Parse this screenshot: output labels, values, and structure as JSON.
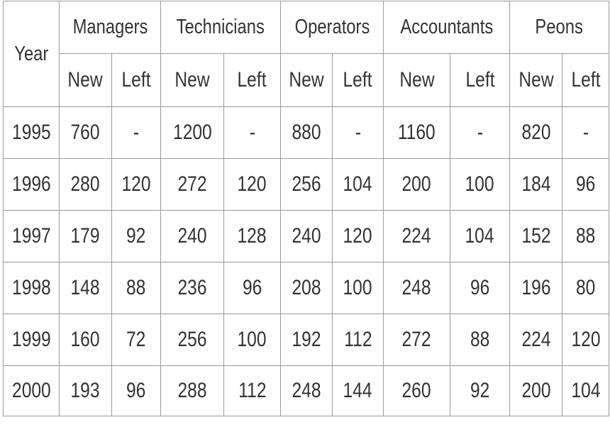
{
  "table": {
    "year_header": "Year",
    "groups": [
      "Managers",
      "Technicians",
      "Operators",
      "Accountants",
      "Peons"
    ],
    "sub_headers": [
      "New",
      "Left"
    ],
    "rows": [
      {
        "year": "1995",
        "cells": [
          "760",
          "-",
          "1200",
          "-",
          "880",
          "-",
          "1160",
          "-",
          "820",
          "-"
        ]
      },
      {
        "year": "1996",
        "cells": [
          "280",
          "120",
          "272",
          "120",
          "256",
          "104",
          "200",
          "100",
          "184",
          "96"
        ]
      },
      {
        "year": "1997",
        "cells": [
          "179",
          "92",
          "240",
          "128",
          "240",
          "120",
          "224",
          "104",
          "152",
          "88"
        ]
      },
      {
        "year": "1998",
        "cells": [
          "148",
          "88",
          "236",
          "96",
          "208",
          "100",
          "248",
          "96",
          "196",
          "80"
        ]
      },
      {
        "year": "1999",
        "cells": [
          "160",
          "72",
          "256",
          "100",
          "192",
          "112",
          "272",
          "88",
          "224",
          "120"
        ]
      },
      {
        "year": "2000",
        "cells": [
          "193",
          "96",
          "288",
          "112",
          "248",
          "144",
          "260",
          "92",
          "200",
          "104"
        ]
      }
    ]
  }
}
